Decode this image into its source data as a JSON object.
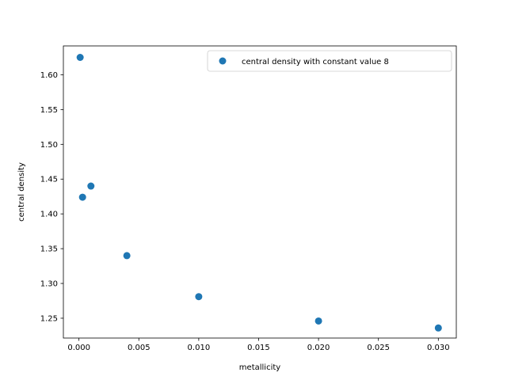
{
  "chart_data": {
    "type": "scatter",
    "title": "",
    "xlabel": "metallicity",
    "ylabel": "central density",
    "xlim": [
      -0.0013,
      0.0315
    ],
    "ylim": [
      1.2215,
      1.6415
    ],
    "xticks": [
      "0.000",
      "0.005",
      "0.010",
      "0.015",
      "0.020",
      "0.025",
      "0.030"
    ],
    "yticks": [
      "1.25",
      "1.30",
      "1.35",
      "1.40",
      "1.45",
      "1.50",
      "1.55",
      "1.60"
    ],
    "grid": false,
    "legend_position": "top-right",
    "series": [
      {
        "name": "central density with constant value 8",
        "color": "#1f77b4",
        "points": [
          {
            "x": 0.0001,
            "y": 1.625
          },
          {
            "x": 0.0003,
            "y": 1.424
          },
          {
            "x": 0.001,
            "y": 1.44
          },
          {
            "x": 0.004,
            "y": 1.34
          },
          {
            "x": 0.01,
            "y": 1.281
          },
          {
            "x": 0.02,
            "y": 1.246
          },
          {
            "x": 0.03,
            "y": 1.236
          }
        ]
      }
    ]
  }
}
